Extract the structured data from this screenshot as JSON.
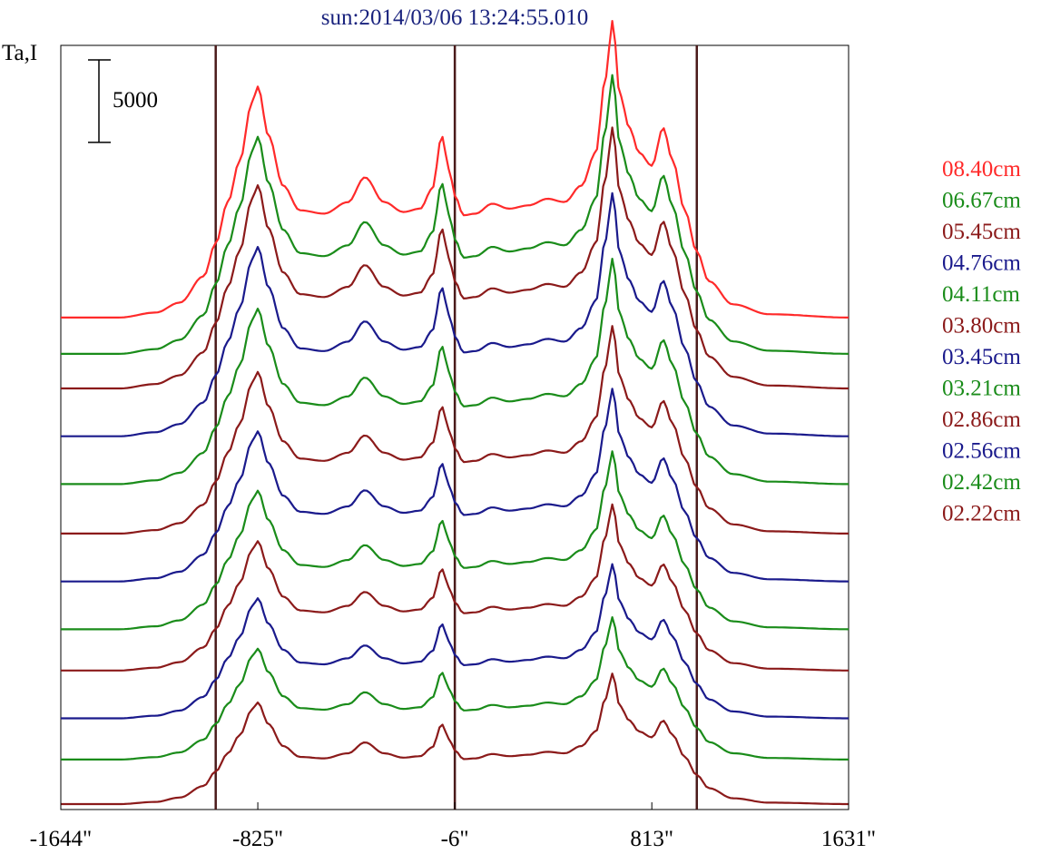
{
  "chart_data": {
    "type": "line",
    "title": "sun:2014/03/06 13:24:55.010",
    "ylabel": "Ta,I",
    "scale_bar_label": "5000",
    "scale_bar_value": 5000,
    "x_ticks": [
      {
        "value": -1644,
        "label": "-1644\""
      },
      {
        "value": -825,
        "label": "-825\""
      },
      {
        "value": -6,
        "label": "-6\""
      },
      {
        "value": 813,
        "label": "813\""
      },
      {
        "value": 1631,
        "label": "1631\""
      }
    ],
    "xlim": [
      -1644,
      1631
    ],
    "ylim": [
      0,
      46000
    ],
    "vertical_lines_x": [
      -1000,
      -6,
      1000
    ],
    "grid": false,
    "legend_position": "right",
    "series": [
      {
        "name": "08.40cm",
        "color": "#ff2a2a",
        "offset": 29500,
        "peak_scale": 1.0
      },
      {
        "name": "06.67cm",
        "color": "#1a8c1a",
        "offset": 27300,
        "peak_scale": 0.94
      },
      {
        "name": "05.45cm",
        "color": "#8b1a1a",
        "offset": 25200,
        "peak_scale": 0.88
      },
      {
        "name": "04.76cm",
        "color": "#1a1a8c",
        "offset": 22300,
        "peak_scale": 0.82
      },
      {
        "name": "04.11cm",
        "color": "#1a8c1a",
        "offset": 19400,
        "peak_scale": 0.76
      },
      {
        "name": "03.80cm",
        "color": "#8b1a1a",
        "offset": 16400,
        "peak_scale": 0.7
      },
      {
        "name": "03.45cm",
        "color": "#1a1a8c",
        "offset": 13500,
        "peak_scale": 0.65
      },
      {
        "name": "03.21cm",
        "color": "#1a8c1a",
        "offset": 10600,
        "peak_scale": 0.6
      },
      {
        "name": "02.86cm",
        "color": "#8b1a1a",
        "offset": 8100,
        "peak_scale": 0.56
      },
      {
        "name": "02.56cm",
        "color": "#1a1a8c",
        "offset": 5200,
        "peak_scale": 0.52
      },
      {
        "name": "02.42cm",
        "color": "#1a8c1a",
        "offset": 2700,
        "peak_scale": 0.48
      },
      {
        "name": "02.22cm",
        "color": "#8b1a1a",
        "offset": 0,
        "peak_scale": 0.44
      }
    ],
    "profile": {
      "x": [
        -1644,
        -1400,
        -1250,
        -1150,
        -1050,
        -1000,
        -950,
        -900,
        -850,
        -825,
        -780,
        -720,
        -650,
        -550,
        -450,
        -380,
        -300,
        -220,
        -150,
        -100,
        -60,
        -30,
        -6,
        30,
        80,
        150,
        220,
        300,
        380,
        450,
        520,
        580,
        620,
        650,
        680,
        720,
        760,
        813,
        860,
        900,
        950,
        1000,
        1050,
        1150,
        1300,
        1631
      ],
      "y": [
        0,
        0,
        300,
        900,
        2500,
        4500,
        7000,
        9500,
        13000,
        14000,
        11000,
        8000,
        6500,
        6300,
        7000,
        8500,
        7000,
        6400,
        6600,
        7800,
        11000,
        9000,
        7400,
        6200,
        6300,
        6900,
        6600,
        6800,
        7200,
        7000,
        8000,
        10000,
        14500,
        18000,
        13500,
        11500,
        10000,
        9200,
        11500,
        9500,
        6500,
        4000,
        2200,
        800,
        200,
        0
      ]
    }
  }
}
